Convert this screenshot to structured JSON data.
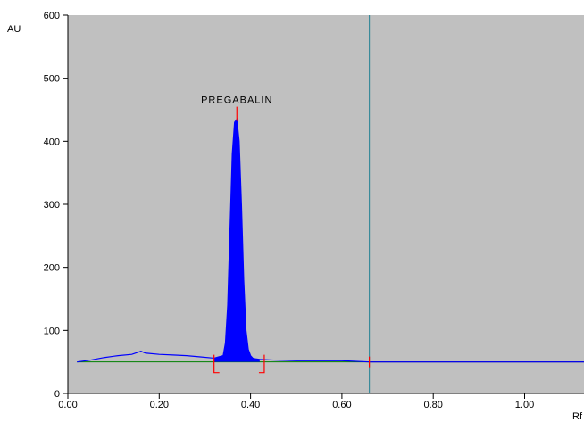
{
  "chart_data": {
    "type": "line",
    "xlabel": "Rf",
    "ylabel": "AU",
    "xlim": [
      0.0,
      1.13
    ],
    "ylim": [
      0,
      600
    ],
    "x_ticks": [
      0.0,
      0.2,
      0.4,
      0.6,
      0.8,
      1.0
    ],
    "x_tick_labels": [
      "0.00",
      "0.20",
      "0.40",
      "0.60",
      "0.80",
      "1.00"
    ],
    "y_ticks": [
      0,
      100,
      200,
      300,
      400,
      500,
      600
    ],
    "y_tick_labels": [
      "0",
      "100",
      "200",
      "300",
      "400",
      "500",
      "600"
    ],
    "grid": false,
    "series": [
      {
        "name": "",
        "x": [
          0.02,
          0.05,
          0.08,
          0.11,
          0.14,
          0.16,
          0.17,
          0.2,
          0.23,
          0.26,
          0.29,
          0.32,
          0.34,
          0.345,
          0.35,
          0.355,
          0.36,
          0.365,
          0.37,
          0.375,
          0.38,
          0.385,
          0.39,
          0.395,
          0.4,
          0.405,
          0.41,
          0.42,
          0.45,
          0.5,
          0.55,
          0.6,
          0.66,
          0.7,
          0.8,
          0.9,
          1.0,
          1.13
        ],
        "values": [
          50,
          53,
          57,
          60,
          62,
          67,
          64,
          62,
          61,
          60,
          58,
          56,
          60,
          80,
          140,
          260,
          380,
          430,
          435,
          400,
          300,
          180,
          100,
          70,
          60,
          56,
          55,
          54,
          53,
          52,
          52,
          52,
          50,
          50,
          50,
          50,
          50,
          50
        ]
      }
    ],
    "peaks": [
      {
        "label": "PREGABALIN",
        "apex_x": 0.37,
        "apex_y": 435,
        "start_x": 0.32,
        "end_x": 0.43
      }
    ],
    "front_line_x": 0.66,
    "baseline_y": 50,
    "colors": {
      "plot_background": "#c0c0c0",
      "trace": "#0000ff",
      "peak_fill": "#0000ff",
      "baseline": "#008000",
      "peak_markers": "#ff0000",
      "front_line": "#3a8a9a"
    }
  }
}
